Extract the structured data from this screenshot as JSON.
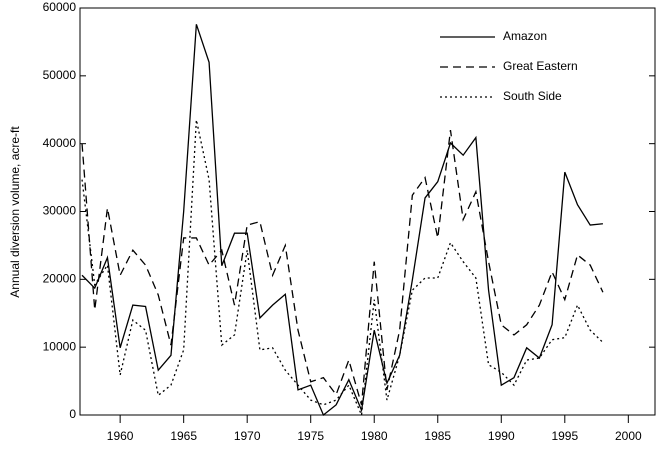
{
  "chart_data": {
    "type": "line",
    "y_label": "Annual diversion volume, acre-ft",
    "x": [
      1957,
      1958,
      1959,
      1960,
      1961,
      1962,
      1963,
      1964,
      1965,
      1966,
      1967,
      1968,
      1969,
      1970,
      1971,
      1972,
      1973,
      1974,
      1975,
      1976,
      1977,
      1978,
      1979,
      1980,
      1981,
      1982,
      1983,
      1984,
      1985,
      1986,
      1987,
      1988,
      1989,
      1990,
      1991,
      1992,
      1993,
      1994,
      1995,
      1996,
      1997,
      1998
    ],
    "series": [
      {
        "name": "Amazon",
        "color": "#000000",
        "dash": "none",
        "values": [
          20600,
          18700,
          23200,
          9900,
          16200,
          16000,
          6600,
          8800,
          30000,
          57600,
          52000,
          22000,
          26800,
          26800,
          14300,
          16200,
          17800,
          3700,
          4400,
          0,
          1500,
          5200,
          700,
          12500,
          4700,
          8800,
          19900,
          32000,
          34400,
          40100,
          38300,
          40900,
          18400,
          4400,
          5500,
          9900,
          8400,
          13300,
          35800,
          31000,
          28000,
          28200
        ]
      },
      {
        "name": "Great Eastern",
        "color": "#000000",
        "dash": "8,5",
        "values": [
          40000,
          15500,
          30500,
          20600,
          24300,
          22100,
          17700,
          10300,
          26100,
          26100,
          22100,
          24300,
          16200,
          28000,
          28500,
          20600,
          25000,
          12500,
          4900,
          5500,
          3000,
          8100,
          1500,
          22600,
          3700,
          12500,
          32400,
          35000,
          26100,
          42000,
          28800,
          32900,
          22600,
          13300,
          11800,
          13300,
          16200,
          21100,
          17000,
          23600,
          22100,
          18100
        ]
      },
      {
        "name": "South Side",
        "color": "#000000",
        "dash": "2,3",
        "values": [
          34700,
          19200,
          22100,
          5900,
          14000,
          12500,
          2900,
          4400,
          9600,
          43500,
          34700,
          10300,
          11800,
          24300,
          9600,
          9900,
          6600,
          4400,
          2200,
          1500,
          2200,
          4400,
          0,
          17000,
          2200,
          8800,
          18400,
          20200,
          20200,
          25400,
          22600,
          20200,
          7400,
          6300,
          4400,
          8100,
          8400,
          11100,
          11400,
          16200,
          12500,
          10700
        ]
      }
    ],
    "xlim": [
      1956.84,
      2002.1
    ],
    "xticks": [
      1960,
      1965,
      1970,
      1975,
      1980,
      1985,
      1990,
      1995,
      2000
    ],
    "ylim": [
      0,
      60000
    ],
    "yticks": [
      0,
      10000,
      20000,
      30000,
      40000,
      50000,
      60000
    ],
    "legend": "top-right"
  }
}
